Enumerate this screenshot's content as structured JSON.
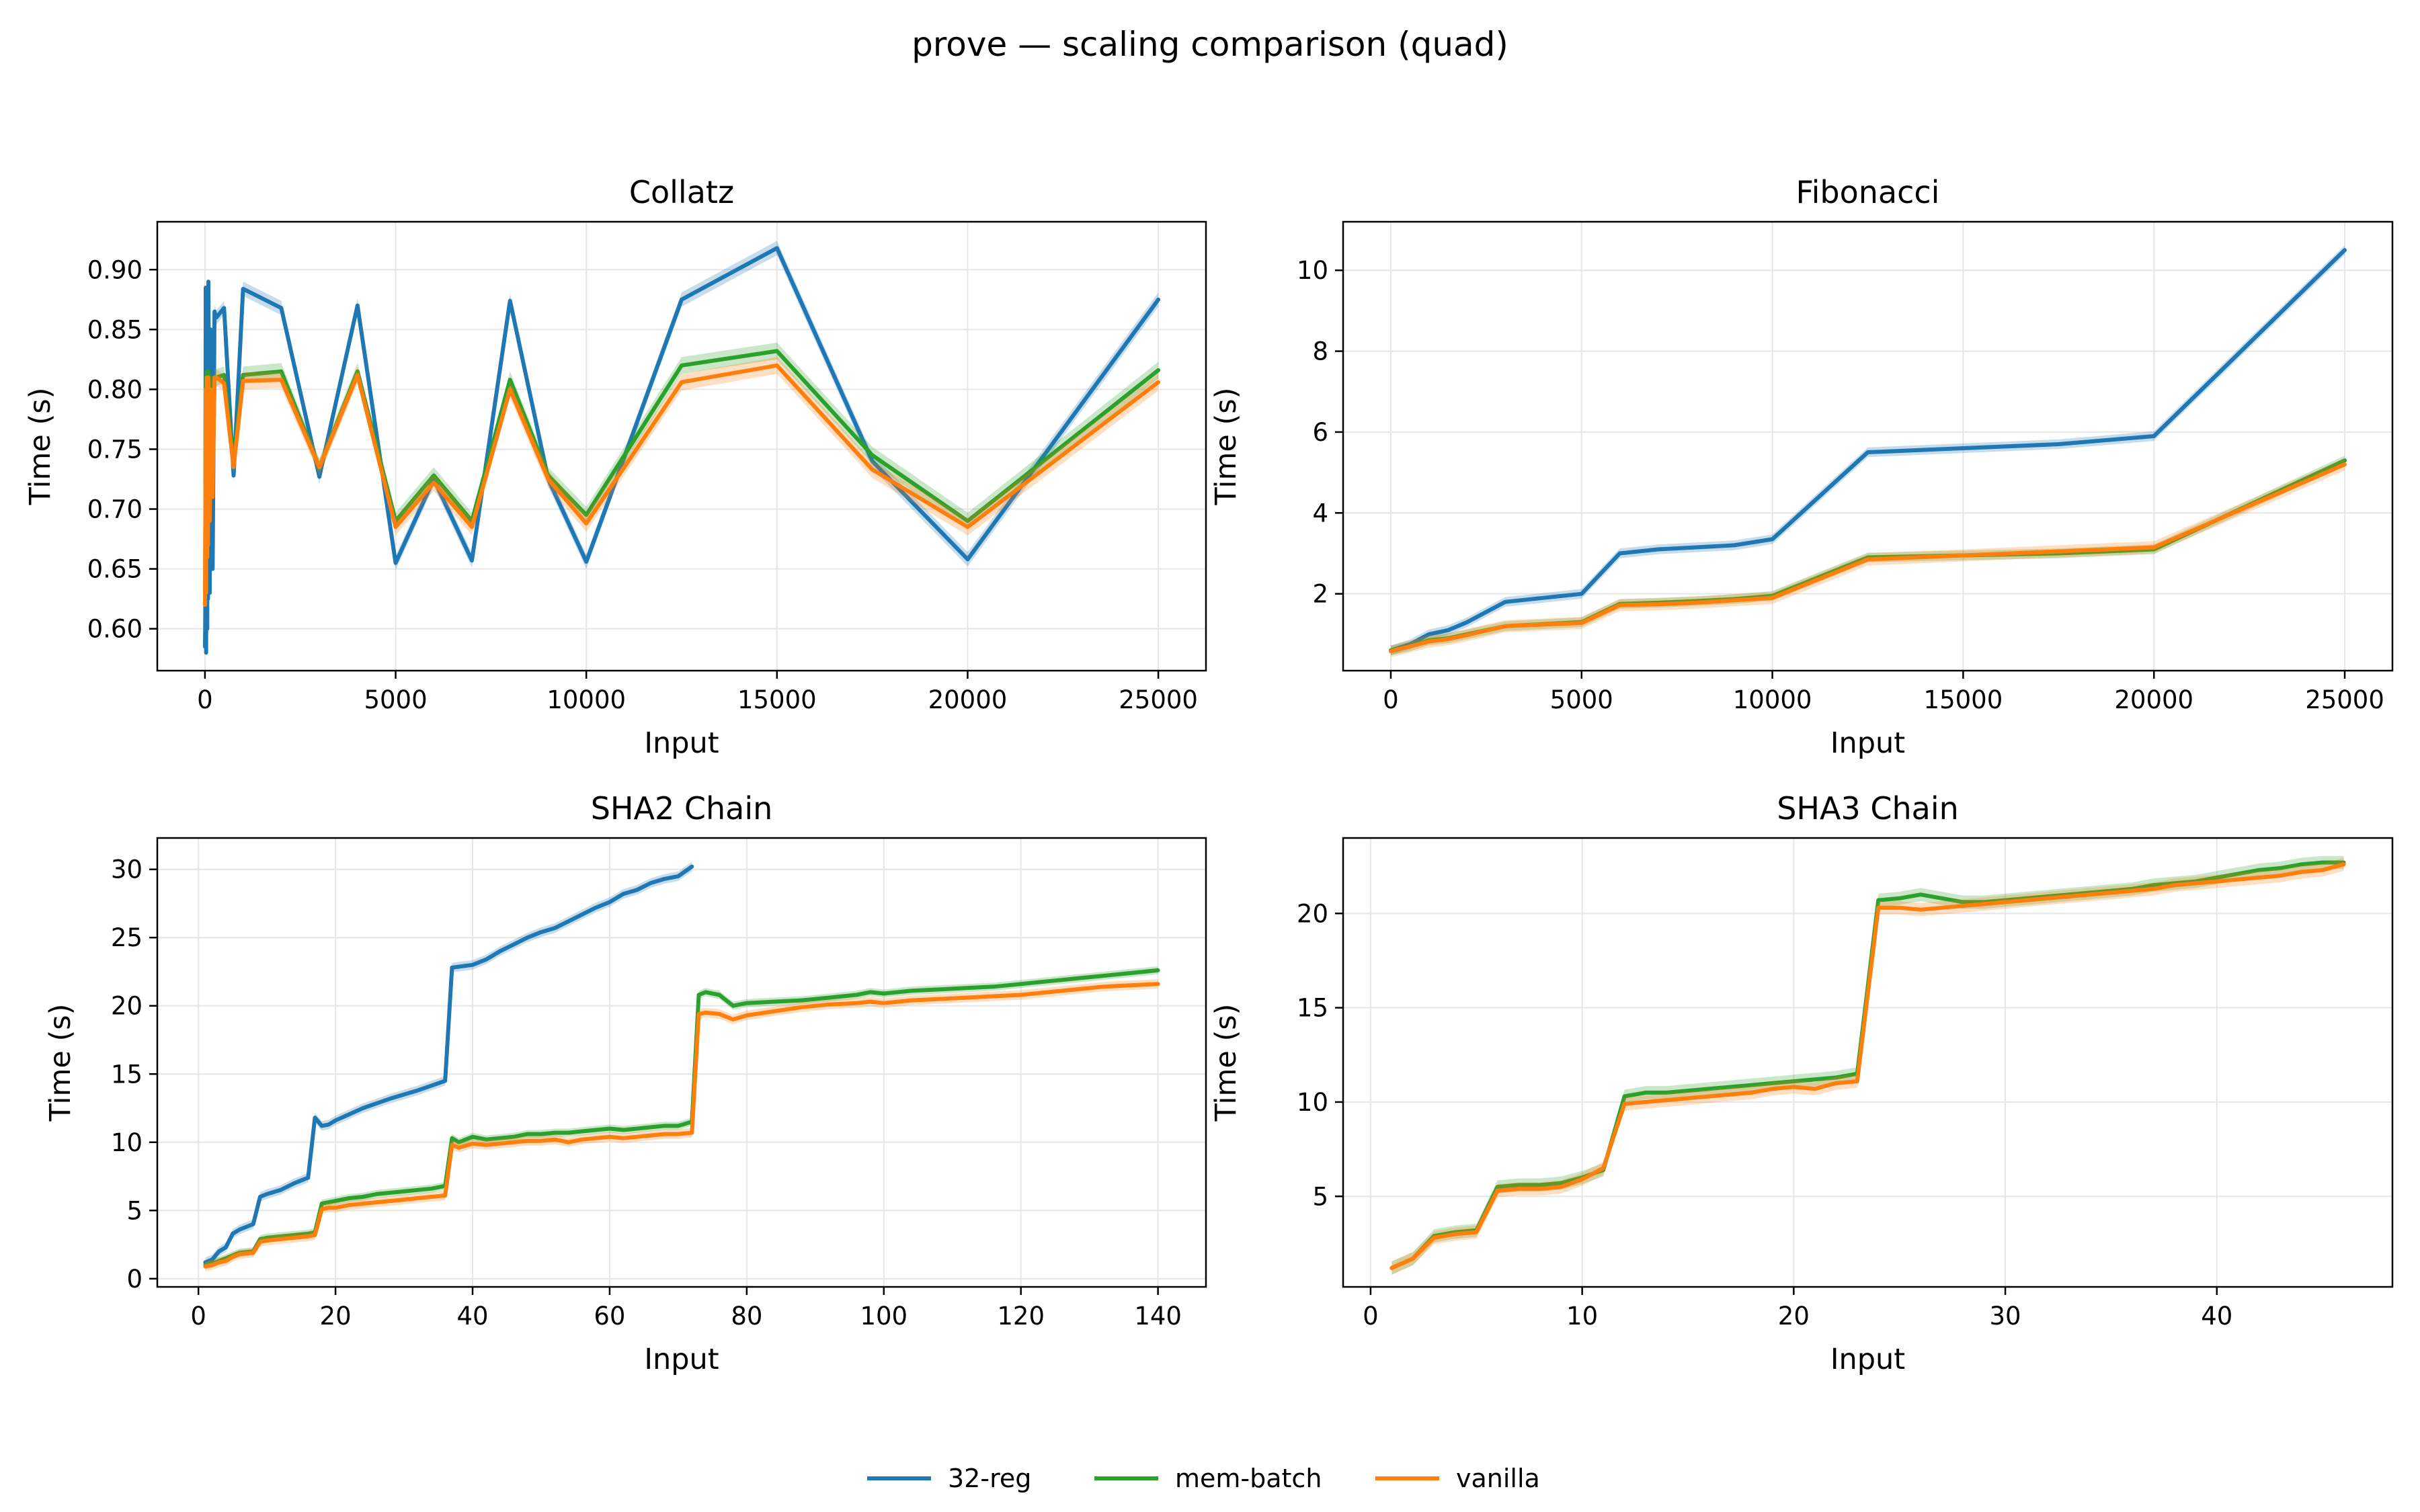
{
  "figure": {
    "title": "prove — scaling comparison (quad)"
  },
  "legend": [
    {
      "name": "32-reg",
      "color": "#1f77b4"
    },
    {
      "name": "mem-batch",
      "color": "#2ca02c"
    },
    {
      "name": "vanilla",
      "color": "#ff7f0e"
    }
  ],
  "chart_data": [
    {
      "type": "line",
      "title": "Collatz",
      "xlabel": "Input",
      "ylabel": "Time (s)",
      "xlim": [
        -1250,
        26250
      ],
      "ylim": [
        0.565,
        0.94
      ],
      "xticks": [
        0,
        5000,
        10000,
        15000,
        20000,
        25000
      ],
      "yticks": [
        0.6,
        0.65,
        0.7,
        0.75,
        0.8,
        0.85,
        0.9
      ],
      "ytick_decimals": 2,
      "grid": true,
      "series": [
        {
          "name": "32-reg",
          "band": 0.006,
          "x": [
            1,
            10,
            20,
            30,
            40,
            50,
            60,
            70,
            80,
            90,
            100,
            125,
            150,
            175,
            200,
            250,
            300,
            500,
            750,
            1000,
            2000,
            3000,
            4000,
            5000,
            6000,
            7000,
            8000,
            9000,
            10000,
            12500,
            15000,
            17500,
            20000,
            25000
          ],
          "y": [
            0.585,
            0.62,
            0.885,
            0.58,
            0.7,
            0.885,
            0.6,
            0.87,
            0.625,
            0.89,
            0.82,
            0.63,
            0.85,
            0.7,
            0.65,
            0.865,
            0.86,
            0.868,
            0.728,
            0.884,
            0.868,
            0.727,
            0.87,
            0.655,
            0.725,
            0.657,
            0.874,
            0.725,
            0.656,
            0.875,
            0.918,
            0.74,
            0.658,
            0.875
          ]
        },
        {
          "name": "mem-batch",
          "band": 0.007,
          "x": [
            1,
            10,
            20,
            30,
            40,
            50,
            60,
            70,
            80,
            90,
            100,
            125,
            150,
            175,
            200,
            250,
            300,
            500,
            750,
            1000,
            2000,
            3000,
            4000,
            5000,
            6000,
            7000,
            8000,
            9000,
            10000,
            12500,
            15000,
            17500,
            20000,
            25000
          ],
          "y": [
            0.62,
            0.69,
            0.81,
            0.64,
            0.75,
            0.815,
            0.67,
            0.81,
            0.68,
            0.815,
            0.79,
            0.7,
            0.81,
            0.74,
            0.72,
            0.81,
            0.81,
            0.812,
            0.74,
            0.812,
            0.815,
            0.735,
            0.815,
            0.69,
            0.728,
            0.69,
            0.808,
            0.728,
            0.695,
            0.82,
            0.832,
            0.745,
            0.69,
            0.816
          ]
        },
        {
          "name": "vanilla",
          "band": 0.007,
          "x": [
            1,
            10,
            20,
            30,
            40,
            50,
            60,
            70,
            80,
            90,
            100,
            125,
            150,
            175,
            200,
            250,
            300,
            500,
            750,
            1000,
            2000,
            3000,
            4000,
            5000,
            6000,
            7000,
            8000,
            9000,
            10000,
            12500,
            15000,
            17500,
            20000,
            25000
          ],
          "y": [
            0.62,
            0.7,
            0.8,
            0.63,
            0.74,
            0.81,
            0.66,
            0.8,
            0.67,
            0.81,
            0.78,
            0.69,
            0.8,
            0.73,
            0.71,
            0.81,
            0.81,
            0.805,
            0.735,
            0.807,
            0.808,
            0.735,
            0.812,
            0.685,
            0.722,
            0.685,
            0.8,
            0.725,
            0.688,
            0.806,
            0.82,
            0.733,
            0.685,
            0.806
          ]
        }
      ]
    },
    {
      "type": "line",
      "title": "Fibonacci",
      "xlabel": "Input",
      "ylabel": "Time (s)",
      "xlim": [
        -1250,
        26250
      ],
      "ylim": [
        0.1,
        11.2
      ],
      "xticks": [
        0,
        5000,
        10000,
        15000,
        20000,
        25000
      ],
      "yticks": [
        2,
        4,
        6,
        8,
        10
      ],
      "ytick_decimals": 0,
      "grid": true,
      "series": [
        {
          "name": "32-reg",
          "band": 0.12,
          "x": [
            0,
            500,
            1000,
            1500,
            2000,
            3000,
            4000,
            5000,
            6000,
            7000,
            8000,
            9000,
            10000,
            12500,
            15000,
            17500,
            20000,
            25000
          ],
          "y": [
            0.6,
            0.75,
            1.0,
            1.1,
            1.3,
            1.8,
            1.9,
            2.0,
            3.0,
            3.1,
            3.15,
            3.2,
            3.35,
            5.5,
            5.6,
            5.7,
            5.9,
            10.5
          ]
        },
        {
          "name": "mem-batch",
          "band": 0.12,
          "x": [
            0,
            500,
            1000,
            1500,
            2000,
            3000,
            4000,
            5000,
            6000,
            7000,
            8000,
            9000,
            10000,
            12500,
            15000,
            17500,
            20000,
            25000
          ],
          "y": [
            0.6,
            0.7,
            0.85,
            0.9,
            1.0,
            1.2,
            1.25,
            1.3,
            1.75,
            1.78,
            1.82,
            1.87,
            1.95,
            2.9,
            2.95,
            3.0,
            3.1,
            5.3
          ]
        },
        {
          "name": "vanilla",
          "band": 0.15,
          "x": [
            0,
            500,
            1000,
            1500,
            2000,
            3000,
            4000,
            5000,
            6000,
            7000,
            8000,
            9000,
            10000,
            12500,
            15000,
            17500,
            20000,
            25000
          ],
          "y": [
            0.58,
            0.7,
            0.82,
            0.88,
            0.98,
            1.2,
            1.24,
            1.28,
            1.72,
            1.74,
            1.78,
            1.84,
            1.9,
            2.85,
            2.95,
            3.05,
            3.15,
            5.2
          ]
        }
      ]
    },
    {
      "type": "line",
      "title": "SHA2 Chain",
      "xlabel": "Input",
      "ylabel": "Time (s)",
      "xlim": [
        -6,
        147
      ],
      "ylim": [
        -0.6,
        32.3
      ],
      "xticks": [
        0,
        20,
        40,
        60,
        80,
        100,
        120,
        140
      ],
      "yticks": [
        0,
        5,
        10,
        15,
        20,
        25,
        30
      ],
      "ytick_decimals": 0,
      "grid": true,
      "series": [
        {
          "name": "32-reg",
          "band": 0.35,
          "x": [
            1,
            2,
            3,
            4,
            5,
            6,
            8,
            9,
            10,
            12,
            14,
            16,
            17,
            18,
            19,
            20,
            24,
            28,
            32,
            36,
            37,
            40,
            42,
            44,
            46,
            48,
            50,
            52,
            54,
            56,
            58,
            60,
            62,
            64,
            66,
            68,
            70,
            72
          ],
          "y": [
            1.2,
            1.4,
            2.0,
            2.3,
            3.3,
            3.6,
            4.0,
            6.0,
            6.2,
            6.5,
            7.0,
            7.4,
            11.8,
            11.2,
            11.3,
            11.6,
            12.5,
            13.2,
            13.8,
            14.5,
            22.8,
            23.0,
            23.4,
            24.0,
            24.5,
            25.0,
            25.4,
            25.7,
            26.2,
            26.7,
            27.2,
            27.6,
            28.2,
            28.5,
            29.0,
            29.3,
            29.5,
            30.2
          ]
        },
        {
          "name": "mem-batch",
          "band": 0.3,
          "x": [
            1,
            2,
            3,
            4,
            5,
            6,
            8,
            9,
            10,
            12,
            14,
            16,
            17,
            18,
            19,
            20,
            22,
            24,
            26,
            28,
            30,
            32,
            34,
            36,
            37,
            38,
            40,
            42,
            44,
            46,
            48,
            50,
            52,
            54,
            56,
            58,
            60,
            62,
            64,
            66,
            68,
            70,
            72,
            73,
            74,
            76,
            78,
            80,
            84,
            88,
            92,
            96,
            98,
            100,
            104,
            108,
            112,
            116,
            120,
            124,
            128,
            132,
            136,
            140
          ],
          "y": [
            1.0,
            1.1,
            1.3,
            1.5,
            1.7,
            1.9,
            2.0,
            2.9,
            3.0,
            3.1,
            3.2,
            3.3,
            3.4,
            5.5,
            5.6,
            5.7,
            5.9,
            6.0,
            6.2,
            6.3,
            6.4,
            6.5,
            6.6,
            6.8,
            10.3,
            10.0,
            10.4,
            10.2,
            10.3,
            10.4,
            10.6,
            10.6,
            10.7,
            10.7,
            10.8,
            10.9,
            11.0,
            10.9,
            11.0,
            11.1,
            11.2,
            11.2,
            11.5,
            20.8,
            21.0,
            20.8,
            20.0,
            20.2,
            20.3,
            20.4,
            20.6,
            20.8,
            21.0,
            20.9,
            21.1,
            21.2,
            21.3,
            21.4,
            21.6,
            21.8,
            22.0,
            22.2,
            22.4,
            22.6
          ]
        },
        {
          "name": "vanilla",
          "band": 0.35,
          "x": [
            1,
            2,
            3,
            4,
            5,
            6,
            8,
            9,
            10,
            12,
            14,
            16,
            17,
            18,
            19,
            20,
            22,
            24,
            26,
            28,
            30,
            32,
            34,
            36,
            37,
            38,
            40,
            42,
            44,
            46,
            48,
            50,
            52,
            54,
            56,
            58,
            60,
            62,
            64,
            66,
            68,
            70,
            72,
            73,
            74,
            76,
            78,
            80,
            84,
            88,
            92,
            96,
            98,
            100,
            104,
            108,
            112,
            116,
            120,
            124,
            128,
            132,
            136,
            140
          ],
          "y": [
            0.9,
            1.0,
            1.2,
            1.3,
            1.6,
            1.8,
            1.9,
            2.7,
            2.8,
            2.9,
            3.0,
            3.1,
            3.2,
            5.1,
            5.2,
            5.2,
            5.4,
            5.5,
            5.6,
            5.7,
            5.8,
            5.9,
            6.0,
            6.1,
            9.8,
            9.6,
            9.9,
            9.8,
            9.9,
            10.0,
            10.1,
            10.1,
            10.2,
            10.0,
            10.2,
            10.3,
            10.4,
            10.3,
            10.4,
            10.5,
            10.6,
            10.6,
            10.7,
            19.4,
            19.5,
            19.4,
            19.0,
            19.3,
            19.6,
            19.9,
            20.1,
            20.2,
            20.3,
            20.2,
            20.4,
            20.5,
            20.6,
            20.7,
            20.8,
            21.0,
            21.2,
            21.4,
            21.5,
            21.6
          ]
        }
      ]
    },
    {
      "type": "line",
      "title": "SHA3 Chain",
      "xlabel": "Input",
      "ylabel": "Time (s)",
      "xlim": [
        -1.3,
        48.3
      ],
      "ylim": [
        0.2,
        24.0
      ],
      "xticks": [
        0,
        10,
        20,
        30,
        40
      ],
      "yticks": [
        5,
        10,
        15,
        20
      ],
      "ytick_decimals": 0,
      "grid": true,
      "series": [
        {
          "name": "mem-batch",
          "band": 0.35,
          "x": [
            1,
            2,
            3,
            4,
            5,
            6,
            7,
            8,
            9,
            10,
            11,
            12,
            13,
            14,
            15,
            16,
            17,
            18,
            19,
            20,
            21,
            22,
            23,
            24,
            25,
            26,
            27,
            28,
            29,
            30,
            31,
            32,
            33,
            34,
            35,
            36,
            37,
            38,
            39,
            40,
            41,
            42,
            43,
            44,
            45,
            46
          ],
          "y": [
            1.2,
            1.7,
            2.9,
            3.1,
            3.2,
            5.5,
            5.6,
            5.6,
            5.7,
            6.0,
            6.4,
            10.3,
            10.5,
            10.5,
            10.6,
            10.7,
            10.8,
            10.9,
            11.0,
            11.1,
            11.2,
            11.3,
            11.5,
            20.7,
            20.8,
            21.0,
            20.8,
            20.6,
            20.6,
            20.7,
            20.8,
            20.9,
            21.0,
            21.1,
            21.2,
            21.3,
            21.5,
            21.6,
            21.7,
            21.9,
            22.1,
            22.3,
            22.4,
            22.6,
            22.7,
            22.7
          ]
        },
        {
          "name": "vanilla",
          "band": 0.35,
          "x": [
            1,
            2,
            3,
            4,
            5,
            6,
            7,
            8,
            9,
            10,
            11,
            12,
            13,
            14,
            15,
            16,
            17,
            18,
            19,
            20,
            21,
            22,
            23,
            24,
            25,
            26,
            27,
            28,
            29,
            30,
            31,
            32,
            33,
            34,
            35,
            36,
            37,
            38,
            39,
            40,
            41,
            42,
            43,
            44,
            45,
            46
          ],
          "y": [
            1.2,
            1.7,
            2.8,
            3.0,
            3.1,
            5.3,
            5.4,
            5.4,
            5.5,
            5.9,
            6.5,
            9.9,
            10.0,
            10.1,
            10.2,
            10.3,
            10.4,
            10.5,
            10.7,
            10.8,
            10.7,
            11.0,
            11.1,
            20.3,
            20.3,
            20.2,
            20.3,
            20.4,
            20.5,
            20.6,
            20.7,
            20.8,
            20.9,
            21.0,
            21.1,
            21.2,
            21.3,
            21.5,
            21.6,
            21.7,
            21.8,
            21.9,
            22.0,
            22.2,
            22.3,
            22.6
          ]
        }
      ]
    }
  ]
}
